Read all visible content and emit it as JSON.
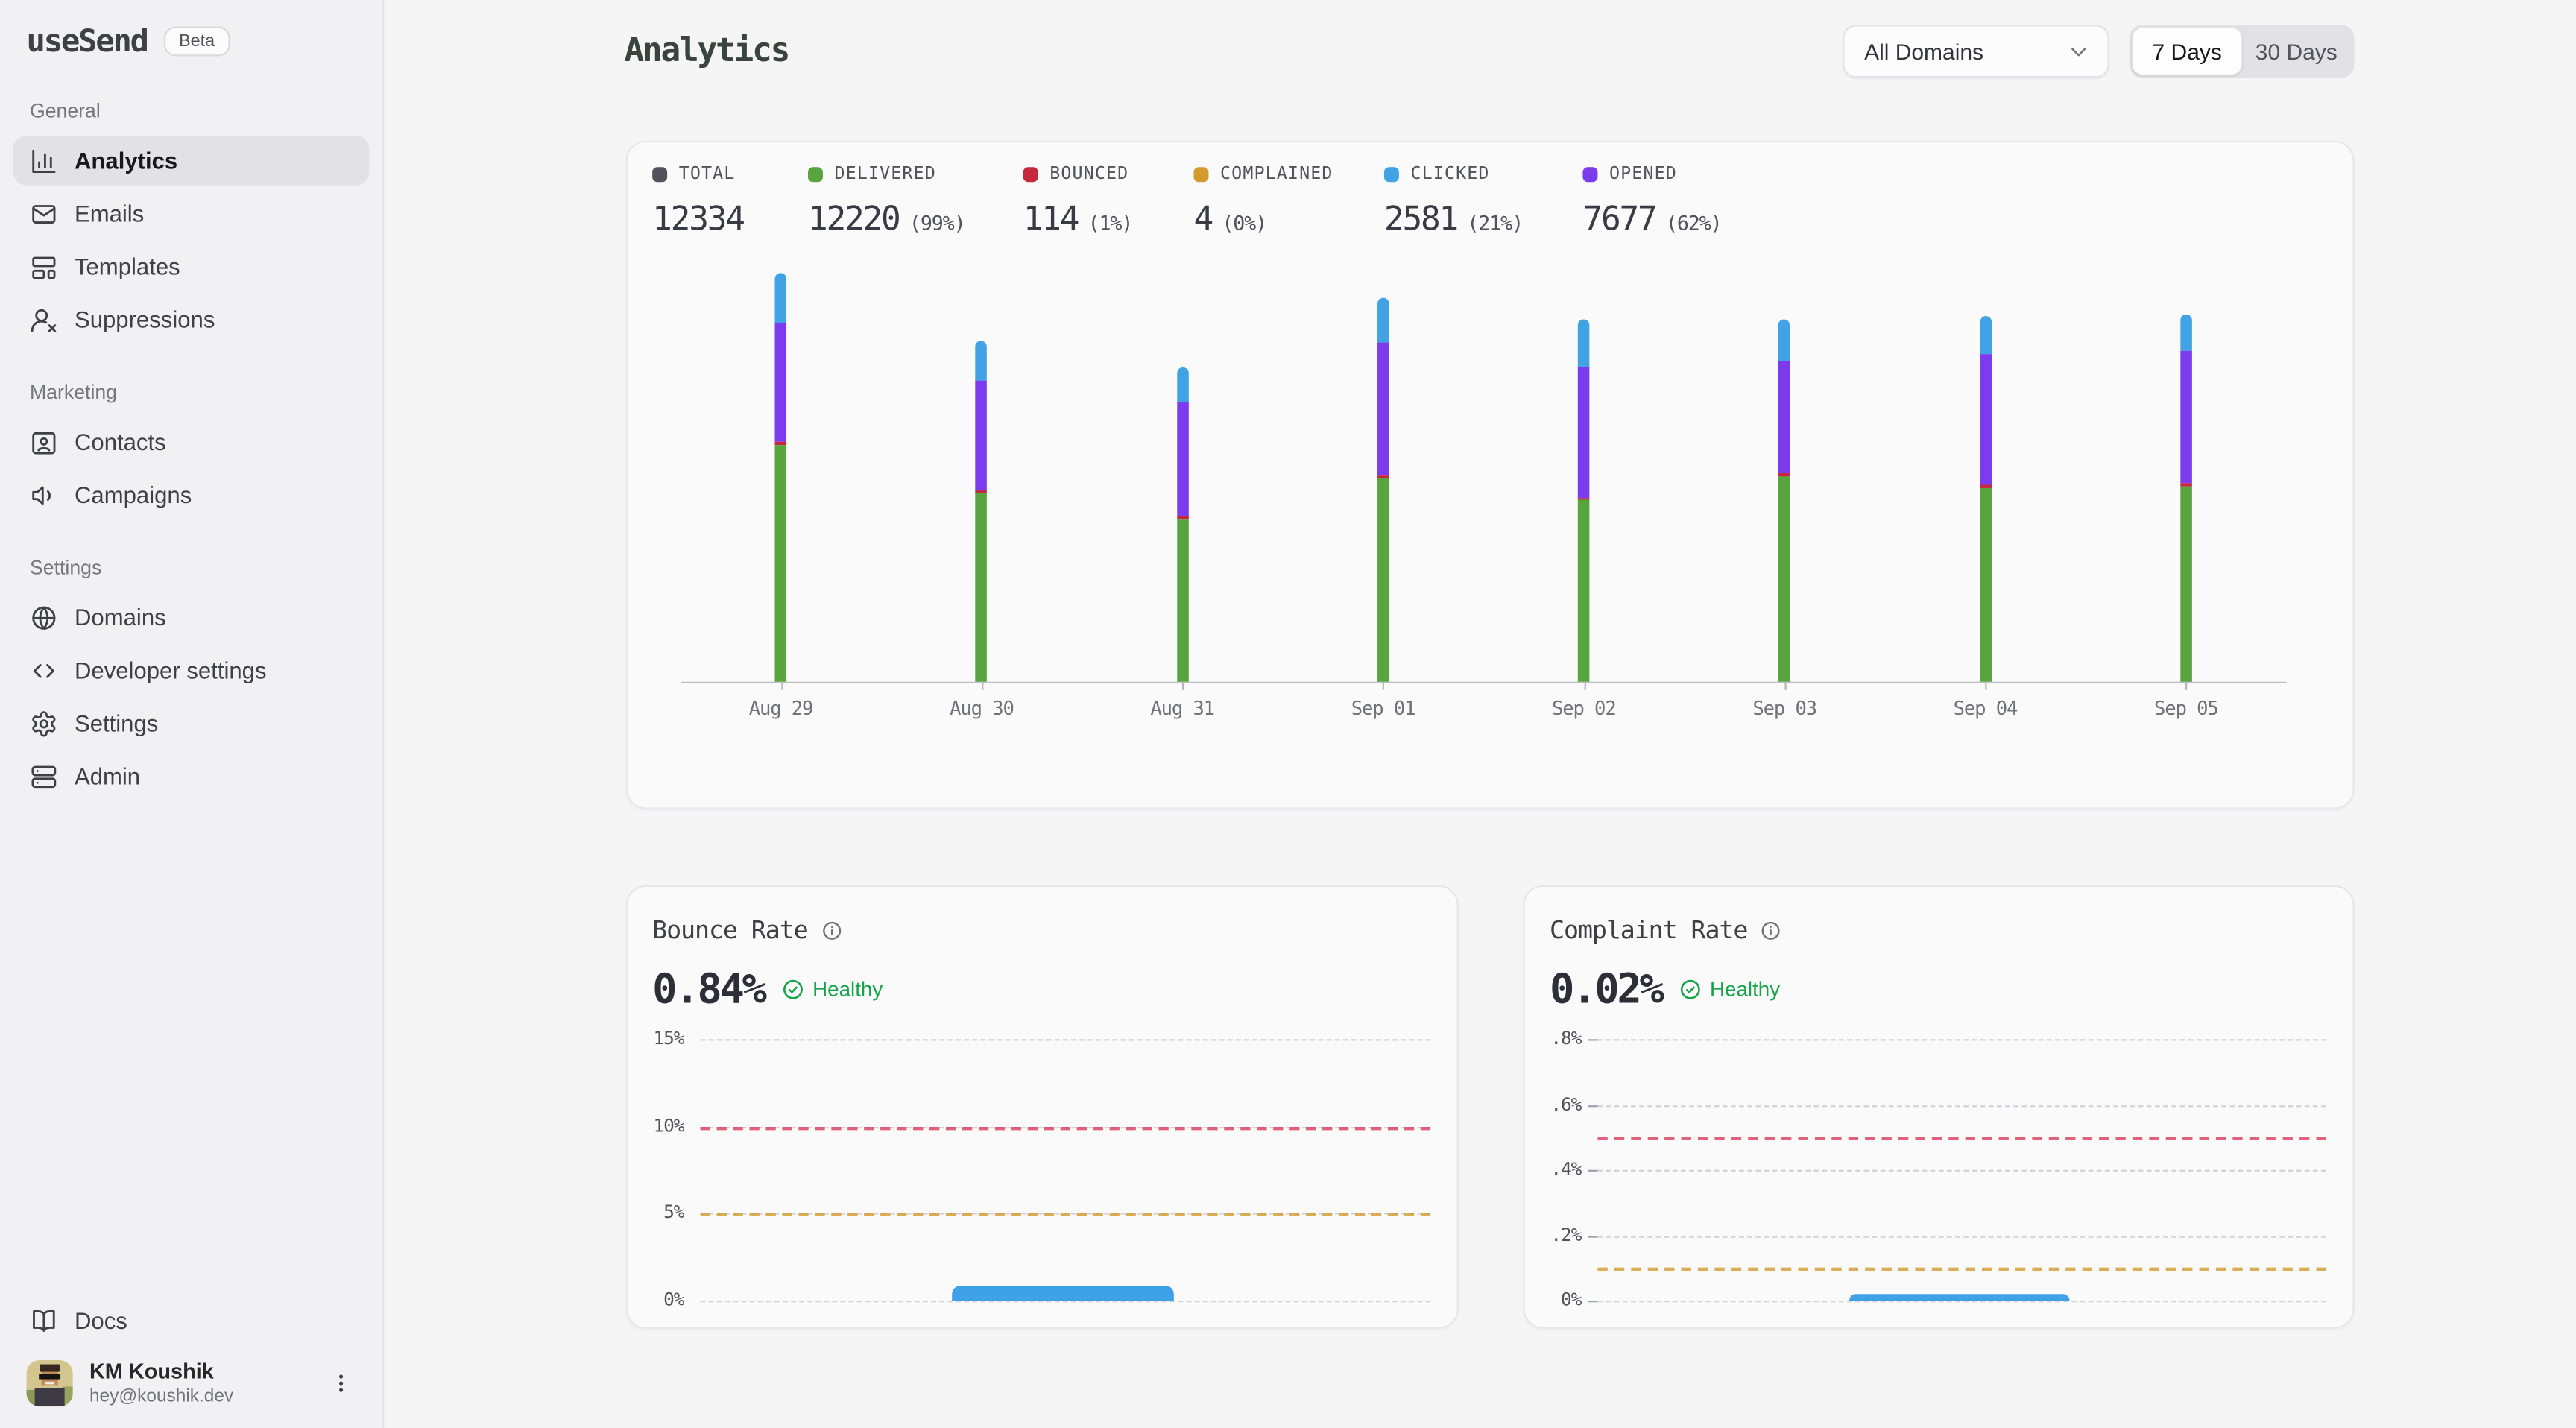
{
  "app": {
    "name": "useSend",
    "badge": "Beta"
  },
  "sidebar": {
    "sections": [
      {
        "label": "General",
        "items": [
          {
            "label": "Analytics",
            "icon": "bar-chart-icon",
            "active": true
          },
          {
            "label": "Emails",
            "icon": "mail-icon",
            "active": false
          },
          {
            "label": "Templates",
            "icon": "layout-template-icon",
            "active": false
          },
          {
            "label": "Suppressions",
            "icon": "user-x-icon",
            "active": false
          }
        ]
      },
      {
        "label": "Marketing",
        "items": [
          {
            "label": "Contacts",
            "icon": "contact-card-icon",
            "active": false
          },
          {
            "label": "Campaigns",
            "icon": "megaphone-icon",
            "active": false
          }
        ]
      },
      {
        "label": "Settings",
        "items": [
          {
            "label": "Domains",
            "icon": "globe-icon",
            "active": false
          },
          {
            "label": "Developer settings",
            "icon": "code-icon",
            "active": false
          },
          {
            "label": "Settings",
            "icon": "gear-icon",
            "active": false
          },
          {
            "label": "Admin",
            "icon": "server-icon",
            "active": false
          }
        ]
      }
    ],
    "docs_label": "Docs",
    "user": {
      "name": "KM Koushik",
      "email": "hey@koushik.dev"
    }
  },
  "header": {
    "title": "Analytics",
    "domain_filter": "All Domains",
    "range_options": [
      "7 Days",
      "30 Days"
    ],
    "range_selected": "7 Days"
  },
  "stats": [
    {
      "label": "TOTAL",
      "value": "12334",
      "pct": "",
      "color": "#52525b"
    },
    {
      "label": "DELIVERED",
      "value": "12220",
      "pct": "(99%)",
      "color": "#58a53f"
    },
    {
      "label": "BOUNCED",
      "value": "114",
      "pct": "(1%)",
      "color": "#c5283c"
    },
    {
      "label": "COMPLAINED",
      "value": "4",
      "pct": "(0%)",
      "color": "#d39a2d"
    },
    {
      "label": "CLICKED",
      "value": "2581",
      "pct": "(21%)",
      "color": "#41a3e4"
    },
    {
      "label": "OPENED",
      "value": "7677",
      "pct": "(62%)",
      "color": "#7c3bed"
    }
  ],
  "chart_data": [
    {
      "id": "email-volume",
      "type": "bar",
      "stacked": true,
      "grid": false,
      "categories": [
        "Aug 29",
        "Aug 30",
        "Aug 31",
        "Sep 01",
        "Sep 02",
        "Sep 03",
        "Sep 04",
        "Sep 05"
      ],
      "series": [
        {
          "name": "Delivered",
          "color": "#58a53f",
          "values": [
            1844,
            1470,
            1265,
            1585,
            1416,
            1600,
            1515,
            1525
          ]
        },
        {
          "name": "Bounced",
          "color": "#c5283c",
          "values": [
            14,
            14,
            14,
            14,
            14,
            15,
            15,
            14
          ]
        },
        {
          "name": "Opened",
          "color": "#7c3bed",
          "values": [
            935,
            857,
            898,
            1039,
            1013,
            883,
            1013,
            1039
          ]
        },
        {
          "name": "Clicked",
          "color": "#41a3e4",
          "values": [
            381,
            307,
            270,
            344,
            369,
            320,
            307,
            283
          ]
        }
      ],
      "legend_position": "top"
    },
    {
      "id": "bounce-rate",
      "type": "area",
      "title": "Bounce Rate",
      "value": "0.84%",
      "status": "Healthy",
      "ylim": [
        0,
        15
      ],
      "ticks": [
        {
          "label": "15%",
          "value": 15
        },
        {
          "label": "10%",
          "value": 10
        },
        {
          "label": "5%",
          "value": 5
        },
        {
          "label": "0%",
          "value": 0
        }
      ],
      "thresholds": [
        {
          "name": "danger",
          "value": 10,
          "color": "#dc3c5e"
        },
        {
          "name": "warning",
          "value": 5,
          "color": "#d49a2e"
        }
      ],
      "series_color": "#3fa2e8",
      "bar": {
        "value": 0.84,
        "start_frac": 0.345,
        "end_frac": 0.648
      },
      "tick_marks": false
    },
    {
      "id": "complaint-rate",
      "type": "area",
      "title": "Complaint Rate",
      "value": "0.02%",
      "status": "Healthy",
      "ylim": [
        0,
        0.8
      ],
      "ticks": [
        {
          "label": ".8%",
          "value": 0.8
        },
        {
          "label": ".6%",
          "value": 0.6
        },
        {
          "label": ".4%",
          "value": 0.4
        },
        {
          "label": ".2%",
          "value": 0.2
        },
        {
          "label": "0%",
          "value": 0
        }
      ],
      "thresholds": [
        {
          "name": "danger",
          "value": 0.5,
          "color": "#dc3c5e"
        },
        {
          "name": "warning",
          "value": 0.1,
          "color": "#d49a2e"
        }
      ],
      "series_color": "#3fa2e8",
      "bar": {
        "value": 0.02,
        "start_frac": 0.345,
        "end_frac": 0.648
      },
      "tick_marks": true
    }
  ],
  "status_color": "#16a34a"
}
